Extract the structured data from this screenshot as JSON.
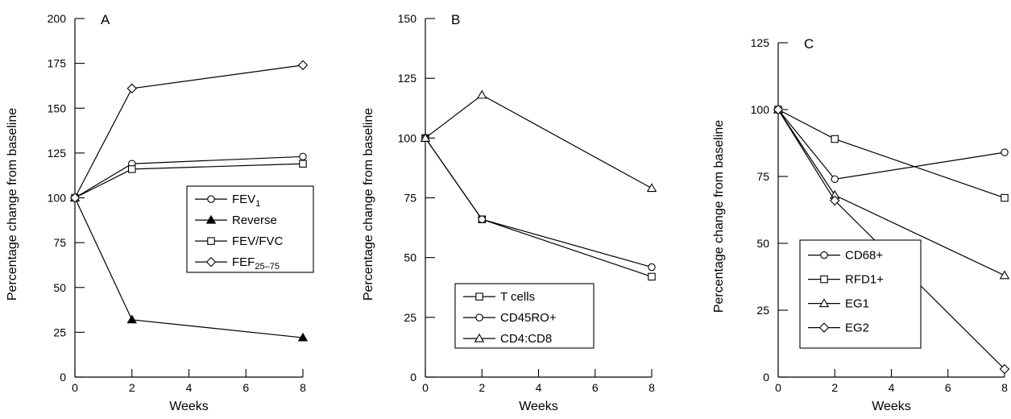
{
  "chart_data": [
    {
      "panel_label": "A",
      "type": "line",
      "xlabel": "Weeks",
      "ylabel": "Percentage change from baseline",
      "xlim": [
        0,
        8
      ],
      "ylim": [
        0,
        200
      ],
      "xticks": [
        0,
        2,
        4,
        6,
        8
      ],
      "yticks": [
        0,
        25,
        50,
        75,
        100,
        125,
        150,
        175,
        200
      ],
      "grid": false,
      "legend_position": "lower-right",
      "x": [
        0,
        2,
        8
      ],
      "series": [
        {
          "name": "FEV",
          "name_sub": "1",
          "marker": "circle-open",
          "values": [
            100,
            119,
            123
          ]
        },
        {
          "name": "Reverse",
          "name_sub": "",
          "marker": "triangle-filled",
          "values": [
            100,
            32,
            22
          ]
        },
        {
          "name": "FEV/FVC",
          "name_sub": "",
          "marker": "square-open",
          "values": [
            100,
            116,
            119
          ]
        },
        {
          "name": "FEF",
          "name_sub": "25–75",
          "marker": "diamond-open",
          "values": [
            100,
            161,
            174
          ]
        }
      ]
    },
    {
      "panel_label": "B",
      "type": "line",
      "xlabel": "Weeks",
      "ylabel": "Percentage change from baseline",
      "xlim": [
        0,
        8
      ],
      "ylim": [
        0,
        150
      ],
      "xticks": [
        0,
        2,
        4,
        6,
        8
      ],
      "yticks": [
        0,
        25,
        50,
        75,
        100,
        125,
        150
      ],
      "grid": false,
      "legend_position": "lower-center",
      "x": [
        0,
        2,
        8
      ],
      "series": [
        {
          "name": "T cells",
          "name_sub": "",
          "marker": "square-open",
          "values": [
            100,
            66,
            42
          ]
        },
        {
          "name": "CD45RO+",
          "name_sub": "",
          "marker": "circle-open",
          "values": [
            100,
            66,
            46
          ]
        },
        {
          "name": "CD4:CD8",
          "name_sub": "",
          "marker": "triangle-open",
          "values": [
            100,
            118,
            79
          ]
        }
      ]
    },
    {
      "panel_label": "C",
      "type": "line",
      "xlabel": "Weeks",
      "ylabel": "Percentage change from baseline",
      "xlim": [
        0,
        8
      ],
      "ylim": [
        0,
        125
      ],
      "xticks": [
        0,
        2,
        4,
        6,
        8
      ],
      "yticks": [
        0,
        25,
        50,
        75,
        100,
        125
      ],
      "grid": false,
      "legend_position": "lower-left",
      "x": [
        0,
        2,
        8
      ],
      "series": [
        {
          "name": "CD68+",
          "name_sub": "",
          "marker": "circle-open",
          "values": [
            100,
            74,
            84
          ]
        },
        {
          "name": "RFD1+",
          "name_sub": "",
          "marker": "square-open",
          "values": [
            100,
            89,
            67
          ]
        },
        {
          "name": "EG1",
          "name_sub": "",
          "marker": "triangle-open",
          "values": [
            100,
            68,
            38
          ]
        },
        {
          "name": "EG2",
          "name_sub": "",
          "marker": "diamond-open",
          "values": [
            100,
            66,
            3
          ]
        }
      ]
    }
  ]
}
